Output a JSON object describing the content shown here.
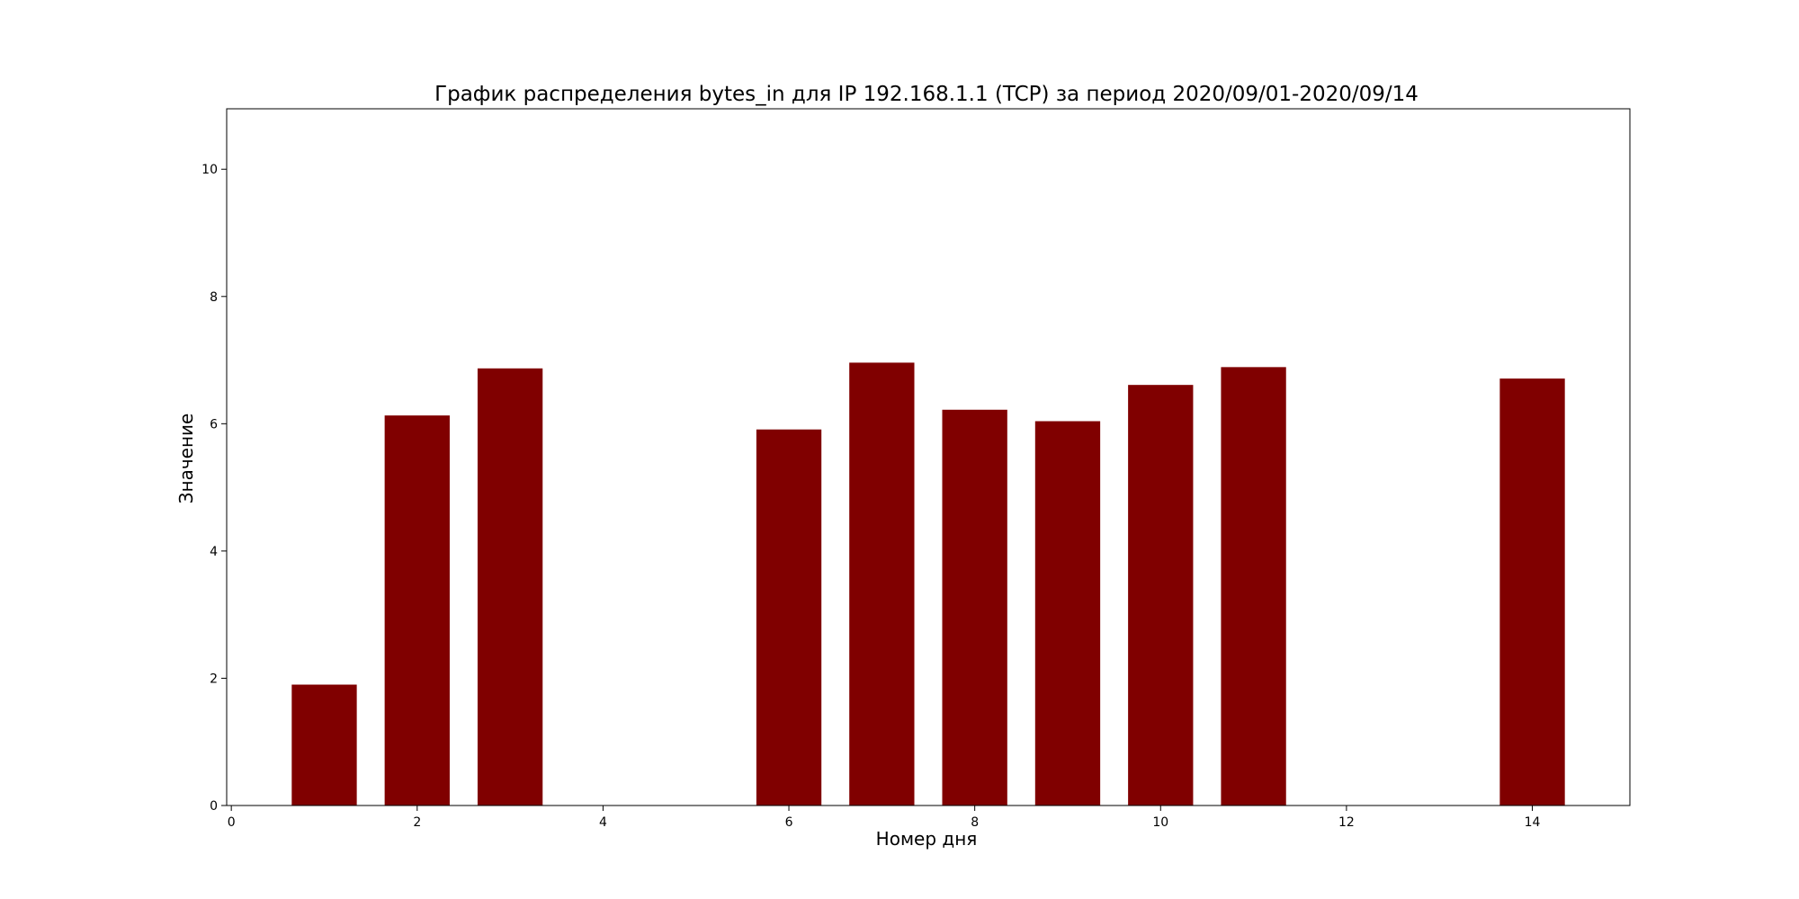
{
  "chart_data": {
    "type": "bar",
    "title": "График распределения bytes_in для IP 192.168.1.1 (TCP) за период 2020/09/01-2020/09/14",
    "xlabel": "Номер дня",
    "ylabel": "Значение",
    "x": [
      1,
      2,
      3,
      6,
      7,
      8,
      9,
      10,
      11,
      14
    ],
    "values": [
      1.9,
      6.13,
      6.87,
      5.91,
      6.96,
      6.22,
      6.04,
      6.61,
      6.89,
      6.71
    ],
    "bar_width": 0.7,
    "xlim": [
      -0.05,
      15.05
    ],
    "ylim": [
      0,
      10.95
    ],
    "xticks": [
      0,
      2,
      4,
      6,
      8,
      10,
      12,
      14
    ],
    "yticks": [
      0,
      2,
      4,
      6,
      8,
      10
    ],
    "bar_color": "#800000",
    "grid": false,
    "legend": null
  }
}
